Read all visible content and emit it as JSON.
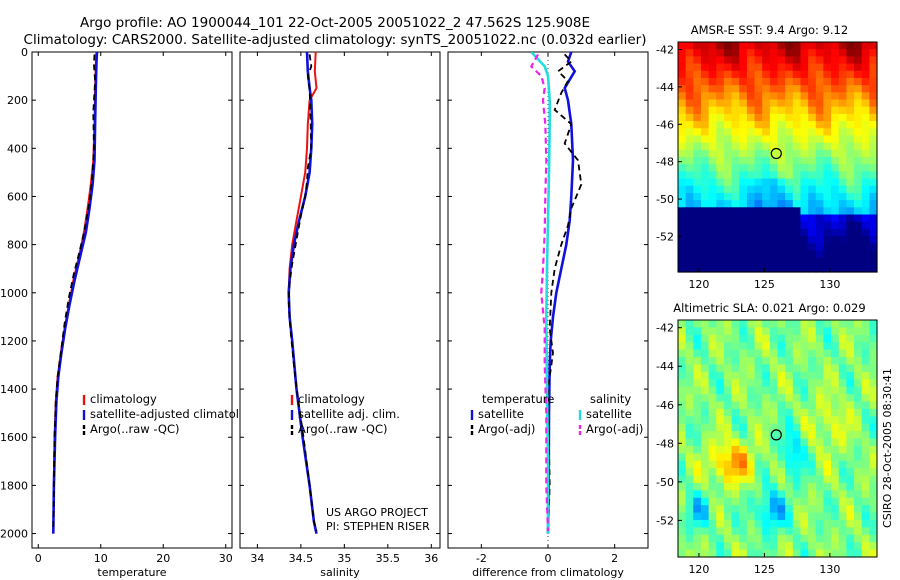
{
  "header": {
    "line1": "Argo profile: AO 1900044_101 22-Oct-2005 20051022_2 47.562S 125.908E",
    "line2": "Climatology: CARS2000. Satellite-adjusted climatology: synTS_20051022.nc (0.032d earlier)"
  },
  "credit": {
    "project": "US ARGO PROJECT",
    "pi": "PI: STEPHEN RISER",
    "stamp": "CSIRO 28-Oct-2005 08:30:41"
  },
  "colors": {
    "climatology": "#ee1111",
    "satellite": "#1111dd",
    "argo": "#000000",
    "cyan": "#22dddd",
    "magenta": "#ee22ee"
  },
  "chart_data": [
    {
      "id": "temperature",
      "type": "line",
      "xlabel": "temperature",
      "xlim": [
        -1,
        31
      ],
      "xticks": [
        0,
        10,
        20,
        30
      ],
      "ylim": [
        2060,
        0
      ],
      "yticks": [
        0,
        200,
        400,
        600,
        800,
        1000,
        1200,
        1400,
        1600,
        1800,
        2000
      ],
      "legend": [
        {
          "label": "climatology",
          "style": "climatology"
        },
        {
          "label": "satellite-adjusted climatology",
          "style": "satellite"
        },
        {
          "label": "Argo(..raw -QC)",
          "style": "argo"
        }
      ],
      "series": [
        {
          "name": "climatology",
          "style": "climatology",
          "x": [
            9.3,
            9.2,
            9.1,
            9.0,
            8.8,
            8.4,
            7.9,
            7.3,
            6.5,
            5.6,
            4.9,
            4.2,
            3.6,
            3.1,
            2.8,
            2.6,
            2.5,
            2.4
          ],
          "y": [
            0,
            50,
            150,
            300,
            450,
            550,
            650,
            750,
            850,
            950,
            1050,
            1150,
            1250,
            1350,
            1450,
            1600,
            1800,
            2000
          ]
        },
        {
          "name": "satellite-adjusted climatology",
          "style": "satellite",
          "x": [
            9.4,
            9.3,
            9.2,
            9.1,
            9.0,
            8.7,
            8.2,
            7.6,
            6.7,
            5.8,
            5.0,
            4.3,
            3.7,
            3.2,
            2.9,
            2.7,
            2.5,
            2.4
          ],
          "y": [
            0,
            50,
            150,
            300,
            450,
            550,
            650,
            750,
            850,
            950,
            1050,
            1150,
            1250,
            1350,
            1450,
            1600,
            1800,
            2000
          ]
        },
        {
          "name": "Argo(..raw -QC)",
          "style": "argo",
          "x": [
            9.0,
            8.9,
            9.1,
            8.8,
            8.9,
            8.7,
            8.4,
            8.0,
            7.4,
            6.6,
            5.7,
            4.9,
            4.2,
            3.6,
            3.1,
            2.8,
            2.6,
            2.5,
            2.4
          ],
          "y": [
            10,
            50,
            120,
            250,
            400,
            500,
            580,
            650,
            740,
            830,
            920,
            1020,
            1130,
            1250,
            1350,
            1450,
            1600,
            1800,
            1990
          ]
        }
      ]
    },
    {
      "id": "salinity",
      "type": "line",
      "xlabel": "salinity",
      "xlim": [
        33.8,
        36.1
      ],
      "xticks": [
        34,
        34.5,
        35,
        35.5,
        36
      ],
      "ylim": [
        2060,
        0
      ],
      "yticks": [
        0,
        200,
        400,
        600,
        800,
        1000,
        1200,
        1400,
        1600,
        1800,
        2000
      ],
      "legend": [
        {
          "label": "climatology",
          "style": "climatology"
        },
        {
          "label": "satellite adj. clim.",
          "style": "satellite"
        },
        {
          "label": "Argo(..raw -QC)",
          "style": "argo"
        }
      ],
      "series": [
        {
          "name": "climatology",
          "style": "climatology",
          "x": [
            34.67,
            34.66,
            34.68,
            34.6,
            34.58,
            34.57,
            34.55,
            34.5,
            34.45,
            34.4,
            34.37,
            34.36,
            34.37,
            34.4,
            34.45,
            34.52,
            34.6,
            34.65,
            34.68
          ],
          "y": [
            0,
            80,
            150,
            200,
            300,
            400,
            500,
            600,
            700,
            800,
            900,
            1000,
            1100,
            1200,
            1400,
            1600,
            1800,
            1950,
            2000
          ]
        },
        {
          "name": "satellite adj. clim.",
          "style": "satellite",
          "x": [
            34.57,
            34.58,
            34.6,
            34.62,
            34.63,
            34.62,
            34.6,
            34.55,
            34.48,
            34.42,
            34.38,
            34.36,
            34.37,
            34.4,
            34.45,
            34.52,
            34.6,
            34.65,
            34.68
          ],
          "y": [
            0,
            80,
            150,
            200,
            300,
            400,
            500,
            600,
            700,
            800,
            900,
            1000,
            1100,
            1200,
            1400,
            1600,
            1800,
            1950,
            2000
          ]
        },
        {
          "name": "Argo(..raw -QC)",
          "style": "argo",
          "x": [
            34.6,
            34.62,
            34.58,
            34.6,
            34.61,
            34.62,
            34.58,
            34.57,
            34.55,
            34.5,
            34.45,
            34.4,
            34.37,
            34.36,
            34.38,
            34.42,
            34.47,
            34.53,
            34.6,
            34.65,
            34.68
          ],
          "y": [
            10,
            60,
            100,
            150,
            250,
            400,
            480,
            540,
            600,
            680,
            780,
            880,
            960,
            1040,
            1150,
            1300,
            1450,
            1600,
            1800,
            1950,
            1990
          ]
        }
      ]
    },
    {
      "id": "difference",
      "type": "line",
      "xlabel": "difference from climatology",
      "xlim": [
        -3,
        3
      ],
      "xticks": [
        -2,
        0,
        2
      ],
      "ylim": [
        2060,
        0
      ],
      "yticks": [
        0,
        200,
        400,
        600,
        800,
        1000,
        1200,
        1400,
        1600,
        1800,
        2000
      ],
      "legend_left_title": "temperature",
      "legend_right_title": "salinity",
      "legend_left": [
        {
          "label": "satellite",
          "style": "satellite"
        },
        {
          "label": "Argo(-adj)",
          "style": "argo"
        }
      ],
      "legend_right": [
        {
          "label": "satellite",
          "style": "cyan"
        },
        {
          "label": "Argo(-adj)",
          "style": "magenta"
        }
      ],
      "series": [
        {
          "name": "temperature satellite",
          "style": "satellite",
          "x": [
            0.7,
            0.6,
            0.8,
            0.5,
            0.6,
            0.7,
            0.75,
            0.7,
            0.65,
            0.55,
            0.4,
            0.25,
            0.15,
            0.08,
            0.05,
            0.03,
            0.02,
            0.0
          ],
          "y": [
            0,
            40,
            80,
            150,
            200,
            300,
            450,
            600,
            700,
            800,
            900,
            1000,
            1100,
            1200,
            1300,
            1500,
            1800,
            2000
          ]
        },
        {
          "name": "temperature Argo(-adj)",
          "style": "argo",
          "x": [
            0.5,
            0.7,
            0.3,
            0.6,
            0.4,
            0.2,
            0.7,
            0.5,
            0.9,
            1.0,
            0.7,
            0.6,
            0.4,
            0.2,
            0.1,
            0.05,
            0.15,
            0.0,
            0.05,
            0.0
          ],
          "y": [
            10,
            40,
            80,
            120,
            170,
            240,
            300,
            380,
            450,
            550,
            650,
            720,
            800,
            900,
            1000,
            1150,
            1250,
            1400,
            1800,
            2000
          ]
        },
        {
          "name": "salinity satellite",
          "style": "cyan",
          "x": [
            -0.5,
            -0.3,
            -0.1,
            0.0,
            0.05,
            0.05,
            0.03,
            0.0,
            -0.03,
            -0.05,
            -0.03,
            0.0,
            0.0
          ],
          "y": [
            0,
            30,
            60,
            100,
            200,
            300,
            500,
            700,
            900,
            1100,
            1400,
            1700,
            2000
          ]
        },
        {
          "name": "salinity Argo(-adj)",
          "style": "magenta",
          "x": [
            -0.3,
            -0.5,
            -0.2,
            -0.1,
            -0.15,
            -0.08,
            -0.05,
            -0.08,
            -0.1,
            -0.15,
            -0.2,
            -0.1,
            -0.1,
            -0.05,
            -0.05,
            0.0
          ],
          "y": [
            10,
            60,
            100,
            150,
            200,
            300,
            450,
            600,
            750,
            900,
            1000,
            1150,
            1300,
            1500,
            1800,
            1990
          ]
        }
      ]
    },
    {
      "id": "sst-map",
      "type": "heatmap",
      "title": "AMSR-E SST: 9.4  Argo: 9.12",
      "xticks": [
        120,
        125,
        130
      ],
      "xlim": [
        118.4,
        133.6
      ],
      "yticks": [
        -42,
        -44,
        -46,
        -48,
        -50,
        -52
      ],
      "ylim": [
        -53.9,
        -41.6
      ],
      "marker": {
        "lon": 125.908,
        "lat": -47.562
      }
    },
    {
      "id": "sla-map",
      "type": "heatmap",
      "title": "Altimetric SLA: 0.021  Argo: 0.029",
      "xticks": [
        120,
        125,
        130
      ],
      "xlim": [
        118.4,
        133.6
      ],
      "yticks": [
        -42,
        -44,
        -46,
        -48,
        -50,
        -52
      ],
      "ylim": [
        -53.9,
        -41.6
      ],
      "marker": {
        "lon": 125.908,
        "lat": -47.562
      }
    }
  ]
}
